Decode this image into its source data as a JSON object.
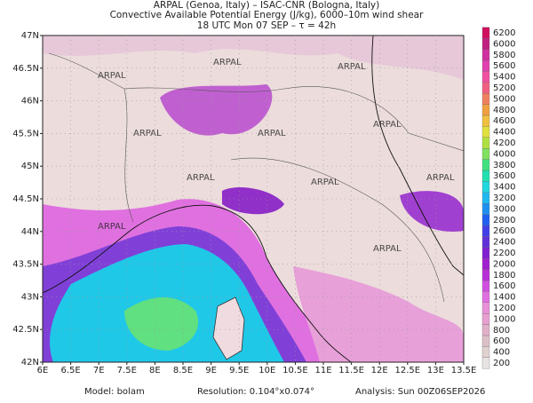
{
  "header": {
    "lines": [
      "ARPAL (Genoa, Italy)  –  ISAC-CNR (Bologna, Italy)",
      "Convective Available Potential Energy (J/kg), 6000–10m wind shear",
      "18 UTC Mon 07 SEP  –  τ = 42h"
    ]
  },
  "map": {
    "lon_ticks": [
      "6E",
      "6.5E",
      "7E",
      "7.5E",
      "8E",
      "8.5E",
      "9E",
      "9.5E",
      "10E",
      "10.5E",
      "11E",
      "11.5E",
      "12E",
      "12.5E",
      "13E",
      "13.5E"
    ],
    "lat_ticks": [
      "42N",
      "42.5N",
      "43N",
      "43.5N",
      "44N",
      "44.5N",
      "45N",
      "45.5N",
      "46N",
      "46.5N",
      "47N"
    ],
    "watermark": "ARPAL"
  },
  "colorbar": {
    "levels": [
      200,
      400,
      600,
      800,
      1000,
      1200,
      1400,
      1600,
      1800,
      2000,
      2200,
      2400,
      2600,
      2800,
      3000,
      3200,
      3400,
      3600,
      3800,
      4000,
      4200,
      4400,
      4600,
      4800,
      5000,
      5200,
      5400,
      5600,
      5800,
      6000,
      6200
    ],
    "colors": [
      "#e8e4e4",
      "#e0d0d0",
      "#dcc0c8",
      "#e0b0c8",
      "#e8a0d0",
      "#e890d8",
      "#e070e0",
      "#d050e0",
      "#b830d8",
      "#a020d0",
      "#8020d0",
      "#6030d8",
      "#4040e8",
      "#2060f0",
      "#2090f0",
      "#20b8f0",
      "#20d8e0",
      "#20e0b0",
      "#40e080",
      "#80e060",
      "#b0e040",
      "#e0e040",
      "#f0c040",
      "#f0a040",
      "#f08060",
      "#f06080",
      "#f050a0",
      "#e040b0",
      "#d030a0",
      "#c02080",
      "#d01060"
    ]
  },
  "footer": {
    "model": "Model:  bolam",
    "resolution": "Resolution:  0.104°x0.074°",
    "analysis": "Analysis:  Sun  00Z06SEP2026"
  }
}
